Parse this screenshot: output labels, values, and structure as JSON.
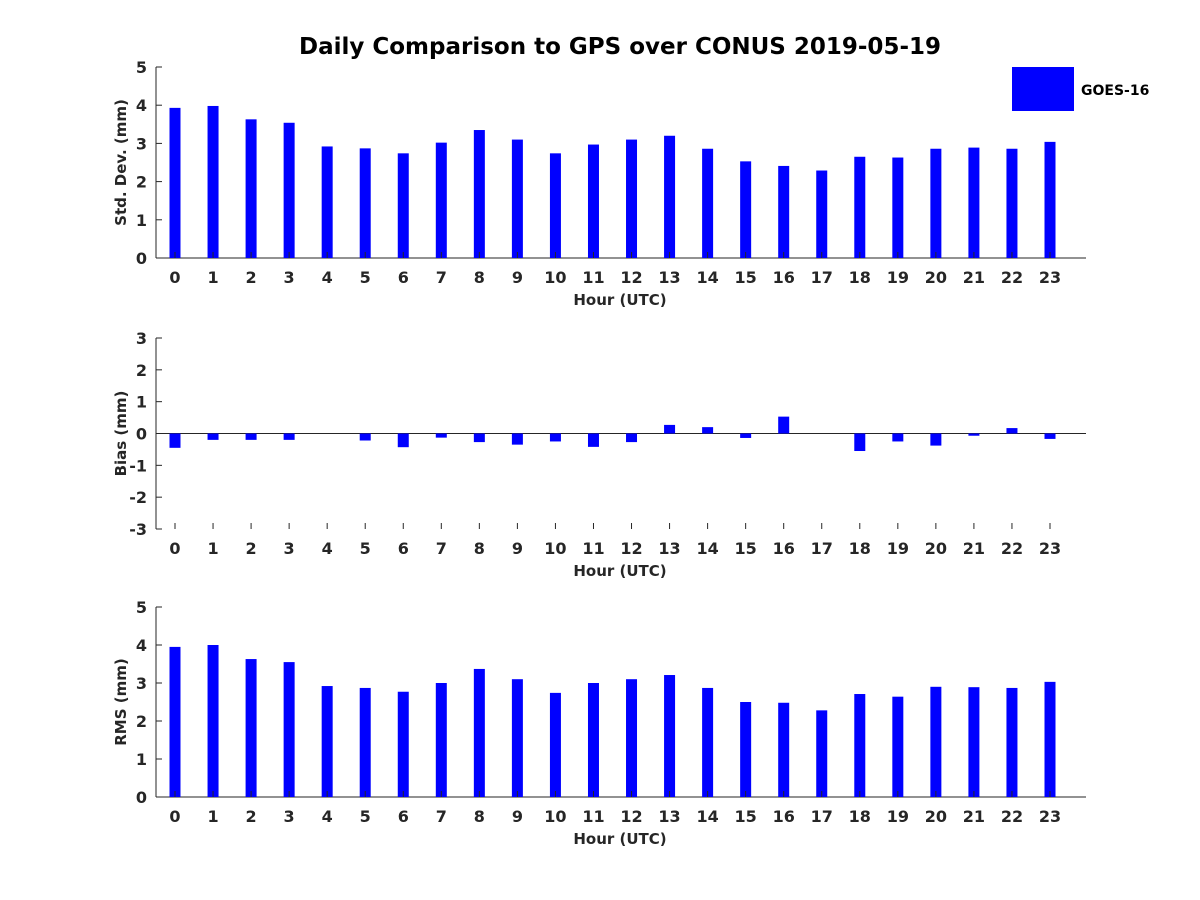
{
  "title": "Daily Comparison to GPS over CONUS 2019-05-19",
  "colors": {
    "bar": "#0000ff",
    "axis": "#262626",
    "background": "#ffffff"
  },
  "legend": {
    "label": "GOES-16",
    "placement": "top-right"
  },
  "chart_data": [
    {
      "type": "bar",
      "panel": "std-dev",
      "series_name": "GOES-16",
      "categories": [
        "0",
        "1",
        "2",
        "3",
        "4",
        "5",
        "6",
        "7",
        "8",
        "9",
        "10",
        "11",
        "12",
        "13",
        "14",
        "15",
        "16",
        "17",
        "18",
        "19",
        "20",
        "21",
        "22",
        "23"
      ],
      "values": [
        3.93,
        3.98,
        3.63,
        3.54,
        2.92,
        2.87,
        2.74,
        3.02,
        3.35,
        3.1,
        2.74,
        2.97,
        3.1,
        3.2,
        2.86,
        2.53,
        2.41,
        2.29,
        2.65,
        2.63,
        2.86,
        2.89,
        2.86,
        3.04
      ],
      "xlabel": "Hour (UTC)",
      "ylabel": "Std. Dev. (mm)",
      "ylim": [
        0,
        5
      ],
      "yticks": [
        0,
        1,
        2,
        3,
        4,
        5
      ]
    },
    {
      "type": "bar",
      "panel": "bias",
      "series_name": "GOES-16",
      "categories": [
        "0",
        "1",
        "2",
        "3",
        "4",
        "5",
        "6",
        "7",
        "8",
        "9",
        "10",
        "11",
        "12",
        "13",
        "14",
        "15",
        "16",
        "17",
        "18",
        "19",
        "20",
        "21",
        "22",
        "23"
      ],
      "values": [
        -0.45,
        -0.2,
        -0.2,
        -0.2,
        0.0,
        -0.22,
        -0.43,
        -0.13,
        -0.27,
        -0.35,
        -0.25,
        -0.42,
        -0.27,
        0.27,
        0.2,
        -0.14,
        0.53,
        0.0,
        -0.55,
        -0.25,
        -0.38,
        -0.07,
        0.17,
        -0.17
      ],
      "xlabel": "Hour (UTC)",
      "ylabel": "Bias (mm)",
      "ylim": [
        -3,
        3
      ],
      "yticks": [
        -3,
        -2,
        -1,
        0,
        1,
        2,
        3
      ]
    },
    {
      "type": "bar",
      "panel": "rms",
      "series_name": "GOES-16",
      "categories": [
        "0",
        "1",
        "2",
        "3",
        "4",
        "5",
        "6",
        "7",
        "8",
        "9",
        "10",
        "11",
        "12",
        "13",
        "14",
        "15",
        "16",
        "17",
        "18",
        "19",
        "20",
        "21",
        "22",
        "23"
      ],
      "values": [
        3.95,
        4.0,
        3.63,
        3.55,
        2.92,
        2.87,
        2.77,
        3.0,
        3.37,
        3.1,
        2.74,
        3.0,
        3.1,
        3.21,
        2.87,
        2.5,
        2.48,
        2.28,
        2.71,
        2.64,
        2.9,
        2.89,
        2.87,
        3.03
      ],
      "xlabel": "Hour (UTC)",
      "ylabel": "RMS (mm)",
      "ylim": [
        0,
        5
      ],
      "yticks": [
        0,
        1,
        2,
        3,
        4,
        5
      ]
    }
  ]
}
